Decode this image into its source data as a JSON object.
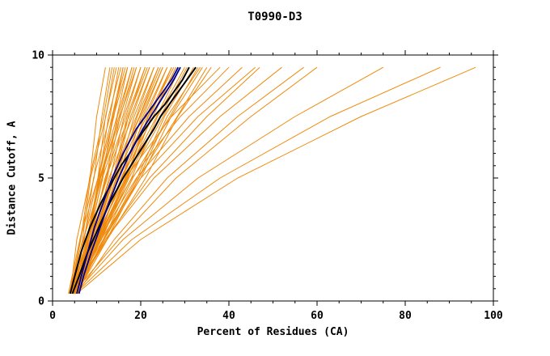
{
  "chart_data": {
    "type": "line",
    "title": "T0990-D3",
    "xlabel": "Percent of Residues (CA)",
    "ylabel": "Distance Cutoff, A",
    "xlim": [
      0,
      100
    ],
    "ylim": [
      0,
      10
    ],
    "x_ticks_major": [
      0,
      20,
      40,
      60,
      80,
      100
    ],
    "x_minor_step": 5,
    "y_ticks_major": [
      0,
      5,
      10
    ],
    "y_minor_step": 0.5,
    "grid": false,
    "legend": "none",
    "colors": {
      "model": "#ef8a0c",
      "highlight_primary": "#000000",
      "highlight_secondary": "#00008b"
    },
    "model_curves": {
      "ys": [
        0.3,
        2.5,
        5.0,
        7.5,
        9.5
      ],
      "xs": [
        [
          4.0,
          5.5,
          8.5,
          10.0,
          12.0
        ],
        [
          4.5,
          6.2,
          9.4,
          11.2,
          13.0
        ],
        [
          3.8,
          6.8,
          8.6,
          12.1,
          14.0
        ],
        [
          5.0,
          7.0,
          10.3,
          12.0,
          14.5
        ],
        [
          4.2,
          7.2,
          9.3,
          13.0,
          15.0
        ],
        [
          4.8,
          7.7,
          10.6,
          12.7,
          15.5
        ],
        [
          3.6,
          6.2,
          10.3,
          13.5,
          16.0
        ],
        [
          5.2,
          8.1,
          10.4,
          13.9,
          16.0
        ],
        [
          4.4,
          7.0,
          11.2,
          13.8,
          17.0
        ],
        [
          4.9,
          8.2,
          10.7,
          14.6,
          17.0
        ],
        [
          4.1,
          7.8,
          10.8,
          15.1,
          18.0
        ],
        [
          5.5,
          8.2,
          12.2,
          14.7,
          18.0
        ],
        [
          4.3,
          8.2,
          11.3,
          15.9,
          19.0
        ],
        [
          5.0,
          8.0,
          12.4,
          15.3,
          19.0
        ],
        [
          4.6,
          8.7,
          11.9,
          16.6,
          20.0
        ],
        [
          5.3,
          8.5,
          13.1,
          16.2,
          20.0
        ],
        [
          4.0,
          8.5,
          12.1,
          17.3,
          21.0
        ],
        [
          5.6,
          9.0,
          13.7,
          16.9,
          21.0
        ],
        [
          4.4,
          9.0,
          12.8,
          18.1,
          22.0
        ],
        [
          5.1,
          8.8,
          14.0,
          17.7,
          22.0
        ],
        [
          4.7,
          9.5,
          13.5,
          19.0,
          23.0
        ],
        [
          5.4,
          9.3,
          14.6,
          18.5,
          23.0
        ],
        [
          4.2,
          9.3,
          13.7,
          19.7,
          24.0
        ],
        [
          5.0,
          9.2,
          14.9,
          19.2,
          24.0
        ],
        [
          4.5,
          9.8,
          14.4,
          20.5,
          25.0
        ],
        [
          5.7,
          10.0,
          15.8,
          20.1,
          25.0
        ],
        [
          4.3,
          9.9,
          14.8,
          21.3,
          26.0
        ],
        [
          5.2,
          9.9,
          16.0,
          20.8,
          26.0
        ],
        [
          4.8,
          10.5,
          15.5,
          22.1,
          27.0
        ],
        [
          5.5,
          10.3,
          16.7,
          21.6,
          27.0
        ],
        [
          4.1,
          10.2,
          15.7,
          22.8,
          28.0
        ],
        [
          5.3,
          10.4,
          17.1,
          22.4,
          28.0
        ],
        [
          4.6,
          10.8,
          16.4,
          23.6,
          29.0
        ],
        [
          5.0,
          10.7,
          17.9,
          23.8,
          30.0
        ],
        [
          4.4,
          11.1,
          17.3,
          25.1,
          31.0
        ],
        [
          5.6,
          11.6,
          19.2,
          25.4,
          32.0
        ],
        [
          4.2,
          11.5,
          18.2,
          26.6,
          33.0
        ],
        [
          5.1,
          11.7,
          20.0,
          26.9,
          34.0
        ],
        [
          4.7,
          12.3,
          19.5,
          28.3,
          35.0
        ],
        [
          5.4,
          12.4,
          21.1,
          28.4,
          36.0
        ],
        [
          3.9,
          6.4,
          8.4,
          11.6,
          13.5
        ],
        [
          5.8,
          8.1,
          11.4,
          13.6,
          16.5
        ],
        [
          4.0,
          8.0,
          10.9,
          15.4,
          18.5
        ],
        [
          5.9,
          9.4,
          14.0,
          17.2,
          21.5
        ],
        [
          4.1,
          9.4,
          13.8,
          19.8,
          24.5
        ],
        [
          5.8,
          10.6,
          16.9,
          21.7,
          27.5
        ],
        [
          4.3,
          11.0,
          16.9,
          24.4,
          30.5
        ],
        [
          5.2,
          11.6,
          19.6,
          26.0,
          33.5
        ],
        [
          4.5,
          9.5,
          16.5,
          27.0,
          38.0
        ],
        [
          5.0,
          10.0,
          18.0,
          29.0,
          40.0
        ],
        [
          4.8,
          10.5,
          19.0,
          31.0,
          43.0
        ],
        [
          5.2,
          11.0,
          20.0,
          33.0,
          46.0
        ],
        [
          4.4,
          12.0,
          22.0,
          35.0,
          47.0
        ],
        [
          5.0,
          12.0,
          23.0,
          38.0,
          52.0
        ],
        [
          5.5,
          14.0,
          26.0,
          42.0,
          57.0
        ],
        [
          4.6,
          15.0,
          28.0,
          45.0,
          60.0
        ],
        [
          5.0,
          16.0,
          33.0,
          55.0,
          75.0
        ],
        [
          5.2,
          18.0,
          38.0,
          63.0,
          88.0
        ],
        [
          5.5,
          20.0,
          42.0,
          70.0,
          96.0
        ]
      ]
    },
    "highlight_curves": [
      {
        "color": "highlight_primary",
        "width": 2,
        "points": [
          [
            4,
            0.3
          ],
          [
            5,
            1
          ],
          [
            6.5,
            2
          ],
          [
            8.5,
            3
          ],
          [
            11,
            4
          ],
          [
            14,
            5
          ],
          [
            15.5,
            5.5
          ],
          [
            17.5,
            6
          ],
          [
            19,
            6.5
          ],
          [
            21,
            7
          ],
          [
            23,
            7.5
          ],
          [
            25.5,
            8
          ],
          [
            27.5,
            8.5
          ],
          [
            29.5,
            9
          ],
          [
            31,
            9.5
          ]
        ]
      },
      {
        "color": "highlight_primary",
        "width": 2,
        "points": [
          [
            4.5,
            0.3
          ],
          [
            6,
            1
          ],
          [
            8,
            2
          ],
          [
            10.5,
            3
          ],
          [
            13,
            4
          ],
          [
            16,
            5
          ],
          [
            19.5,
            6
          ],
          [
            23,
            7
          ],
          [
            24.5,
            7.5
          ],
          [
            26.5,
            8
          ],
          [
            28.5,
            8.5
          ],
          [
            30.5,
            9
          ],
          [
            32.5,
            9.5
          ]
        ]
      },
      {
        "color": "highlight_secondary",
        "width": 1.8,
        "points": [
          [
            5.5,
            0.3
          ],
          [
            6.5,
            1
          ],
          [
            8,
            2
          ],
          [
            9.5,
            3
          ],
          [
            11.5,
            4
          ],
          [
            13.5,
            5
          ],
          [
            16,
            6
          ],
          [
            19,
            7
          ],
          [
            23,
            8
          ],
          [
            25,
            8.5
          ],
          [
            27,
            9
          ],
          [
            28.5,
            9.5
          ]
        ]
      },
      {
        "color": "highlight_secondary",
        "width": 1.8,
        "points": [
          [
            6,
            0.3
          ],
          [
            7,
            1
          ],
          [
            8.8,
            2
          ],
          [
            10.8,
            3
          ],
          [
            12.8,
            4
          ],
          [
            15,
            5
          ],
          [
            17.5,
            6
          ],
          [
            20.5,
            7
          ],
          [
            24,
            8
          ],
          [
            27.5,
            9
          ],
          [
            29,
            9.5
          ]
        ]
      }
    ]
  }
}
